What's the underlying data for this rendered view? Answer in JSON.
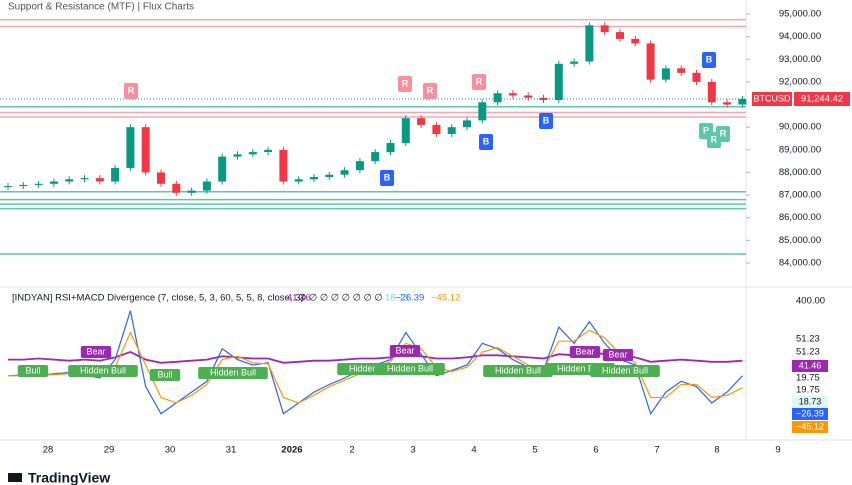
{
  "header": "Support & Resistance (MTF) | Flux Charts",
  "chart_data": {
    "type": "candlestick",
    "symbol": "BTCUSD",
    "last_label": "91,244.42",
    "close": [
      87400,
      87450,
      87500,
      87600,
      87700,
      87750,
      87600,
      88200,
      90000,
      88000,
      87500,
      87100,
      87200,
      87600,
      88700,
      88800,
      88900,
      89000,
      87600,
      87700,
      87800,
      87900,
      88100,
      88500,
      88900,
      89300,
      90400,
      90100,
      89700,
      90000,
      90300,
      91100,
      91500,
      91400,
      91300,
      91200,
      92800,
      92900,
      94500,
      94200,
      93900,
      93700,
      92100,
      92600,
      92400,
      92000,
      91100,
      91000,
      91244.42
    ],
    "up_color": "#089981",
    "down_color": "#f23645",
    "ylim": [
      83600,
      95600
    ],
    "yticks": [
      {
        "value": 95000,
        "label": "95,000.00"
      },
      {
        "value": 94000,
        "label": "94,000.00"
      },
      {
        "value": 93000,
        "label": "93,000.00"
      },
      {
        "value": 92000,
        "label": "92,000.00"
      },
      {
        "value": 90000,
        "label": "90,000.00"
      },
      {
        "value": 89000,
        "label": "89,000.00"
      },
      {
        "value": 88000,
        "label": "88,000.00"
      },
      {
        "value": 87000,
        "label": "87,000.00"
      },
      {
        "value": 86000,
        "label": "86,000.00"
      },
      {
        "value": 85000,
        "label": "85,000.00"
      },
      {
        "value": 84000,
        "label": "84,000.00"
      }
    ],
    "levels": [
      {
        "value": 94750,
        "color": "#f7a5b0"
      },
      {
        "value": 94450,
        "color": "#f7a5b0"
      },
      {
        "value": 90900,
        "color": "#5cc8a6"
      },
      {
        "value": 90650,
        "color": "#f7a5b0"
      },
      {
        "value": 90450,
        "color": "#f7a5b0"
      },
      {
        "value": 87150,
        "color": "#5cc8a6"
      },
      {
        "value": 86800,
        "color": "#5cc8a6"
      },
      {
        "value": 86600,
        "color": "#5cc8a6"
      },
      {
        "value": 86400,
        "color": "#5cc8a6"
      },
      {
        "value": 84400,
        "color": "#5cc8a6"
      }
    ],
    "markers": [
      "R",
      "R",
      "R",
      "R",
      "B",
      "B",
      "B",
      "B",
      "P",
      "R",
      "R"
    ],
    "x_labels": [
      "28",
      "29",
      "30",
      "31",
      "2026",
      "2",
      "3",
      "4",
      "5",
      "6",
      "7",
      "8",
      "9"
    ],
    "indicator": {
      "title": "[INDYAN] RSI+MACD Divergence (7, close, 5, 3, 60, 5, 5, 8, close, 3)",
      "readouts": [
        "41.46",
        "∅ ∅ ∅ ∅ ∅ ∅ ∅ ∅",
        "18.73",
        "−26.39",
        "−45.12"
      ],
      "axis_labels": [
        "400.00",
        "51.23",
        "51.23",
        "19.75",
        "19.75"
      ],
      "ylim": [
        -20,
        100
      ],
      "rsi": {
        "color": "#9c27b0",
        "values": [
          45,
          45,
          46,
          45,
          44,
          45,
          44,
          47,
          52,
          45,
          42,
          43,
          44,
          45,
          48,
          47,
          46,
          46,
          42,
          43,
          44,
          44,
          45,
          46,
          46,
          47,
          50,
          48,
          46,
          46,
          47,
          49,
          49,
          48,
          47,
          46,
          50,
          49,
          52,
          50,
          48,
          47,
          43,
          44,
          45,
          44,
          43,
          43,
          44
        ]
      },
      "macd": {
        "color": "#2962ff",
        "values": [
          30,
          31,
          30,
          32,
          33,
          31,
          28,
          45,
          90,
          20,
          -5,
          5,
          15,
          25,
          55,
          45,
          40,
          42,
          -5,
          5,
          15,
          22,
          28,
          35,
          40,
          45,
          70,
          50,
          30,
          35,
          40,
          60,
          55,
          45,
          38,
          35,
          75,
          60,
          80,
          60,
          45,
          40,
          -5,
          15,
          25,
          20,
          5,
          15,
          30
        ]
      },
      "signal": {
        "color": "#ff9800",
        "values": [
          30,
          30,
          31,
          31,
          32,
          32,
          30,
          38,
          70,
          40,
          10,
          5,
          12,
          22,
          45,
          48,
          42,
          41,
          10,
          5,
          12,
          20,
          26,
          32,
          38,
          43,
          60,
          55,
          38,
          34,
          38,
          52,
          56,
          48,
          40,
          36,
          62,
          62,
          72,
          65,
          50,
          42,
          10,
          10,
          22,
          22,
          10,
          12,
          19
        ]
      },
      "labels": [
        "Bull",
        "Hidden Bull",
        "Bear",
        "Bull",
        "Hidden Bull",
        "Hidden Bull",
        "Bear",
        "Hidden Bull",
        "Hidden Bull",
        "Hidden Bull",
        "Bear",
        "Bear",
        "Hidden Bull"
      ]
    }
  },
  "footer": "TradingView"
}
